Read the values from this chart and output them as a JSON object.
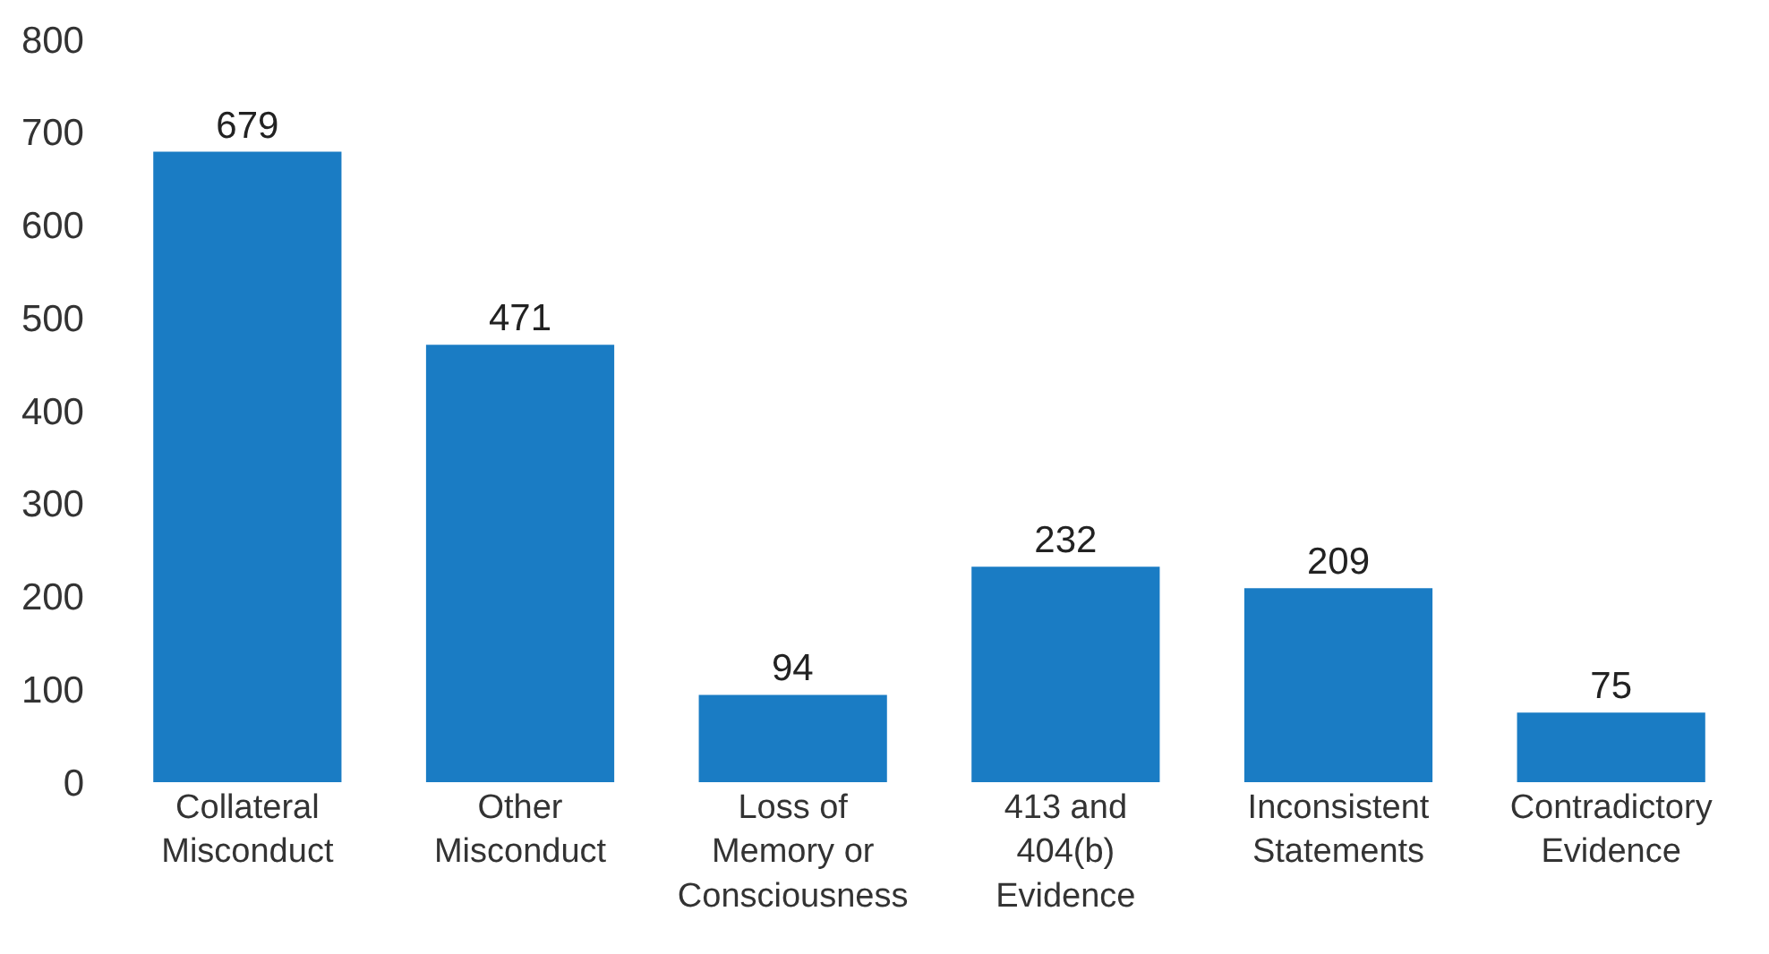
{
  "chart_data": {
    "type": "bar",
    "categories": [
      "Collateral Misconduct",
      "Other Misconduct",
      "Loss of Memory or Consciousness",
      "413 and 404(b) Evidence",
      "Inconsistent Statements",
      "Contradictory Evidence"
    ],
    "values": [
      679,
      471,
      94,
      232,
      209,
      75
    ],
    "color": "#1a7cc4",
    "ylim": [
      0,
      800
    ],
    "yticks": [
      0,
      100,
      200,
      300,
      400,
      500,
      600,
      700,
      800
    ],
    "data_labels": true,
    "grid": false,
    "legend": false
  }
}
